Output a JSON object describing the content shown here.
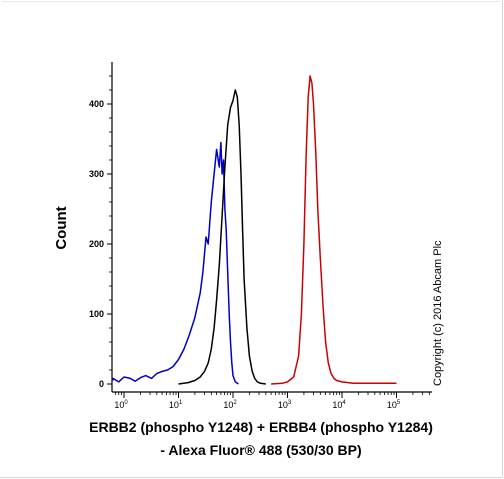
{
  "chart_data": {
    "type": "histogram",
    "xlabel_line1": "ERBB2 (phospho Y1248) + ERBB4 (phospho Y1284)",
    "xlabel_line2": "- Alexa Fluor® 488 (530/30 BP)",
    "ylabel": "Count",
    "x_scale": "log",
    "x_tick_labels": [
      "10",
      "10",
      "10",
      "10",
      "10",
      "10"
    ],
    "x_tick_exponents": [
      "0",
      "1",
      "2",
      "3",
      "4",
      "5"
    ],
    "y_ticks": [
      0,
      100,
      200,
      300,
      400
    ],
    "ylim": [
      0,
      440
    ],
    "annotation": "Copyright (c) 2016 Abcam Plc",
    "series": [
      {
        "color": "#0000cc",
        "x": [
          0.5,
          0.6,
          0.8,
          1.0,
          1.3,
          1.6,
          2.0,
          2.5,
          3.2,
          4.0,
          5.0,
          6.3,
          8.0,
          10,
          12.6,
          15.8,
          20,
          25,
          28,
          32,
          35,
          40,
          45,
          50,
          56,
          60,
          63,
          67,
          71,
          75,
          80,
          85,
          90,
          95,
          100,
          110,
          126
        ],
        "y": [
          5,
          8,
          3,
          10,
          8,
          4,
          9,
          12,
          8,
          15,
          18,
          20,
          25,
          35,
          50,
          70,
          95,
          130,
          160,
          210,
          200,
          260,
          300,
          335,
          310,
          345,
          300,
          320,
          250,
          220,
          160,
          100,
          60,
          30,
          12,
          3,
          0
        ]
      },
      {
        "color": "#000000",
        "x": [
          10,
          15,
          20,
          25,
          30,
          35,
          40,
          45,
          50,
          56,
          63,
          71,
          80,
          90,
          100,
          110,
          120,
          130,
          140,
          150,
          160,
          180,
          200,
          225,
          250,
          280,
          320,
          400
        ],
        "y": [
          0,
          2,
          5,
          10,
          18,
          30,
          50,
          80,
          120,
          170,
          240,
          310,
          370,
          395,
          405,
          420,
          410,
          370,
          300,
          220,
          150,
          80,
          40,
          18,
          8,
          3,
          1,
          0
        ]
      },
      {
        "color": "#cc0000",
        "x": [
          500,
          800,
          1000,
          1300,
          1600,
          1800,
          2000,
          2200,
          2400,
          2600,
          2800,
          3000,
          3300,
          3600,
          4000,
          4500,
          5000,
          5600,
          6300,
          7100,
          8000,
          10000,
          13000,
          16000,
          25000,
          50000,
          100000
        ],
        "y": [
          0,
          1,
          3,
          10,
          40,
          100,
          200,
          330,
          410,
          440,
          430,
          400,
          330,
          250,
          180,
          110,
          60,
          30,
          15,
          8,
          5,
          3,
          2,
          1,
          1,
          1,
          1
        ]
      }
    ]
  }
}
